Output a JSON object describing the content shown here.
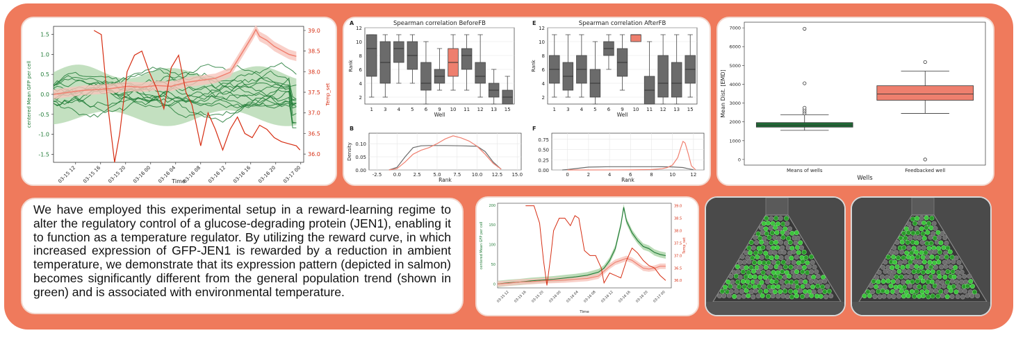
{
  "description_text": "We have employed this experimental setup in a reward-learning regime to alter the regulatory control of a glucose-degrading protein (JEN1), enabling it to function as a temperature regulator. By utilizing the reward curve, in which increased expression of GFP-JEN1 is rewarded by a reduction in ambient temperature, we demonstrate that its expression pattern (depicted in salmon) becomes significantly different from the general population trend (shown in green) and is associated with environmental temperature.",
  "colors": {
    "banner": "#ef7a5c",
    "green": "#1f7a35",
    "green_band": "#a9d3a5",
    "salmon": "#f08070",
    "salmon_band": "#f8c4bb",
    "red": "#d62d12",
    "grey_box": "#6b6b6b"
  },
  "chart_data": [
    {
      "type": "line",
      "id": "timeseries_main",
      "xlabel": "Time",
      "ylabel": "centered Mean GFP per cell",
      "y2label": "Temp_set",
      "xticks": [
        "03-15 12",
        "03-15 16",
        "03-15 20",
        "03-16 00",
        "03-16 04",
        "03-16 08",
        "03-16 12",
        "03-16 16",
        "03-16 20",
        "03-17 00"
      ],
      "yticks": [
        "1.5",
        "1.0",
        "0.5",
        "0.0",
        "-0.5",
        "-1.0",
        "-1.5"
      ],
      "y2ticks": [
        "39.0",
        "38.5",
        "38.0",
        "37.5",
        "37.0",
        "36.5",
        "36.0"
      ],
      "ylim": [
        -1.7,
        1.7
      ],
      "y2lim": [
        35.8,
        39.1
      ],
      "series": [
        {
          "role": "temperature",
          "color": "#d62d12",
          "x": [
            0,
            4,
            5.5,
            6.5,
            7.5,
            8.3,
            9,
            10,
            11,
            12,
            13,
            14,
            15,
            16,
            17,
            18,
            18.8,
            19.3,
            20,
            21,
            22,
            23,
            24,
            25,
            26,
            27,
            28,
            29,
            30,
            31,
            32,
            33,
            33.5
          ],
          "y": [
            null,
            null,
            39.0,
            38.9,
            37.0,
            35.8,
            36.5,
            38.0,
            38.4,
            38.5,
            38.0,
            37.6,
            37.1,
            38.1,
            38.4,
            37.5,
            37.2,
            36.8,
            36.2,
            37.0,
            36.6,
            36.1,
            36.6,
            36.9,
            36.5,
            36.4,
            36.7,
            36.6,
            36.4,
            36.3,
            36.25,
            36.2,
            36.1
          ]
        },
        {
          "role": "feedbacked_well",
          "color": "#f08070",
          "x": [
            0,
            2,
            4,
            6,
            8,
            10,
            12,
            14,
            16,
            18,
            20,
            22,
            24,
            25,
            26,
            27,
            27.5,
            28,
            29,
            30,
            31,
            32,
            33
          ],
          "y": [
            0.0,
            0.05,
            0.1,
            0.12,
            0.15,
            0.2,
            0.18,
            0.22,
            0.2,
            0.3,
            0.35,
            0.4,
            0.55,
            0.85,
            1.15,
            1.45,
            1.62,
            1.45,
            1.35,
            1.2,
            1.1,
            1.0,
            0.95
          ]
        }
      ]
    },
    {
      "type": "box",
      "id": "spearman_before",
      "panel": "A",
      "title": "Spearman correlation BeforeFB",
      "xlabel": "Well",
      "ylabel": "Rank",
      "categories": [
        "1",
        "3",
        "4",
        "5",
        "6",
        "9",
        "10",
        "11",
        "12",
        "13",
        "15"
      ],
      "ylim": [
        1,
        12
      ],
      "yticks": [
        2,
        4,
        6,
        8,
        10,
        12
      ],
      "boxes": [
        {
          "min": 2,
          "q1": 5,
          "median": 9,
          "q3": 11,
          "max": 11
        },
        {
          "min": 2,
          "q1": 4,
          "median": 7,
          "q3": 10,
          "max": 11
        },
        {
          "min": 4,
          "q1": 7,
          "median": 9,
          "q3": 10,
          "max": 11
        },
        {
          "min": 4,
          "q1": 6,
          "median": 8,
          "q3": 10,
          "max": 11
        },
        {
          "min": 1,
          "q1": 3,
          "median": 4,
          "q3": 7,
          "max": 10
        },
        {
          "min": 3,
          "q1": 4,
          "median": 5,
          "q3": 6,
          "max": 9
        },
        {
          "min": 3,
          "q1": 5,
          "median": 7,
          "q3": 9,
          "max": 11,
          "highlight": true
        },
        {
          "min": 3,
          "q1": 6,
          "median": 8,
          "q3": 9,
          "max": 11
        },
        {
          "min": 2,
          "q1": 4,
          "median": 5,
          "q3": 7,
          "max": 11
        },
        {
          "min": 1,
          "q1": 2,
          "median": 3,
          "q3": 4,
          "max": 6
        },
        {
          "min": 1,
          "q1": 1,
          "median": 2,
          "q3": 3,
          "max": 5
        }
      ]
    },
    {
      "type": "box",
      "id": "spearman_after",
      "panel": "E",
      "title": "Spearman correlation AfterFB",
      "xlabel": "Well",
      "ylabel": "Rank",
      "categories": [
        "1",
        "3",
        "4",
        "5",
        "6",
        "9",
        "10",
        "11",
        "12",
        "13",
        "15"
      ],
      "ylim": [
        1,
        12
      ],
      "yticks": [
        2,
        4,
        6,
        8,
        10,
        12
      ],
      "boxes": [
        {
          "min": 2,
          "q1": 4,
          "median": 6,
          "q3": 8,
          "max": 11
        },
        {
          "min": 2,
          "q1": 3,
          "median": 5,
          "q3": 7,
          "max": 11
        },
        {
          "min": 2,
          "q1": 4,
          "median": 6,
          "q3": 8,
          "max": 11
        },
        {
          "min": 1,
          "q1": 2,
          "median": 4,
          "q3": 6,
          "max": 10
        },
        {
          "min": 6,
          "q1": 8,
          "median": 9,
          "q3": 10,
          "max": 11
        },
        {
          "min": 3,
          "q1": 5,
          "median": 7,
          "q3": 9,
          "max": 11
        },
        {
          "min": 10,
          "q1": 10,
          "median": 11,
          "q3": 11,
          "max": 11,
          "highlight": true
        },
        {
          "min": 1,
          "q1": 1,
          "median": 3,
          "q3": 5,
          "max": 10
        },
        {
          "min": 1,
          "q1": 2,
          "median": 4,
          "q3": 8,
          "max": 11
        },
        {
          "min": 1,
          "q1": 2,
          "median": 4,
          "q3": 7,
          "max": 11
        },
        {
          "min": 2,
          "q1": 4,
          "median": 6,
          "q3": 8,
          "max": 11
        }
      ]
    },
    {
      "type": "line",
      "id": "density_before",
      "panel": "B",
      "xlabel": "Rank",
      "ylabel": "Density",
      "xticks": [
        "-2.5",
        "0.0",
        "2.5",
        "5.0",
        "7.5",
        "10.0",
        "12.5",
        "15.0"
      ],
      "yticks": [
        "0.00",
        "0.05",
        "0.10"
      ],
      "xlim": [
        -3.5,
        15.5
      ],
      "ylim": [
        0,
        0.14
      ],
      "series": [
        {
          "color": "#6b6b6b",
          "x": [
            -1,
            0,
            1,
            2,
            3,
            4,
            6,
            8,
            10,
            11,
            12,
            13
          ],
          "y": [
            0,
            0.01,
            0.05,
            0.085,
            0.092,
            0.093,
            0.093,
            0.092,
            0.09,
            0.07,
            0.03,
            0.003
          ]
        },
        {
          "color": "#f08070",
          "x": [
            -1,
            0,
            1,
            2,
            3,
            4,
            5,
            6,
            7,
            8,
            9,
            10,
            11,
            12,
            13
          ],
          "y": [
            0,
            0.005,
            0.03,
            0.06,
            0.075,
            0.085,
            0.1,
            0.118,
            0.13,
            0.122,
            0.11,
            0.09,
            0.06,
            0.025,
            0.003
          ]
        }
      ]
    },
    {
      "type": "line",
      "id": "density_after",
      "panel": "F",
      "xlabel": "Rank",
      "ylabel": "",
      "xticks": [
        "0",
        "2",
        "4",
        "6",
        "8",
        "10",
        "12"
      ],
      "yticks": [
        "0.00",
        "0.25",
        "0.50",
        "0.75"
      ],
      "xlim": [
        -1.5,
        13
      ],
      "ylim": [
        0,
        0.9
      ],
      "series": [
        {
          "color": "#6b6b6b",
          "x": [
            -0.5,
            0,
            1,
            2,
            4,
            6,
            8,
            9,
            10,
            11,
            11.5,
            12
          ],
          "y": [
            0,
            0.01,
            0.04,
            0.07,
            0.08,
            0.08,
            0.08,
            0.078,
            0.075,
            0.06,
            0.03,
            0.005
          ]
        },
        {
          "color": "#f08070",
          "x": [
            0,
            6,
            8,
            9,
            9.5,
            10,
            10.5,
            10.8,
            11,
            11.2,
            11.5,
            11.8,
            12.2
          ],
          "y": [
            0,
            0.002,
            0.01,
            0.03,
            0.06,
            0.12,
            0.3,
            0.55,
            0.7,
            0.66,
            0.4,
            0.1,
            0.005
          ]
        }
      ]
    },
    {
      "type": "box",
      "id": "mean_distance",
      "xlabel": "Wells",
      "ylabel": "Mean Dist. [EMD]",
      "categories": [
        "Means of wells",
        "Feedbacked well"
      ],
      "ylim": [
        -300,
        7300
      ],
      "yticks": [
        0,
        1000,
        2000,
        3000,
        4000,
        5000,
        6000,
        7000
      ],
      "boxes": [
        {
          "min": 1550,
          "q1": 1720,
          "median": 1820,
          "q3": 1960,
          "max": 2380,
          "color": "#1f6b36",
          "outliers": [
            2450,
            2550,
            2650,
            2750,
            4050,
            6950
          ]
        },
        {
          "min": 2450,
          "q1": 3150,
          "median": 3480,
          "q3": 3920,
          "max": 4700,
          "color": "#ee7f6e",
          "outliers": [
            5180,
            0
          ]
        }
      ]
    },
    {
      "type": "line",
      "id": "timeseries_small",
      "xlabel": "Time",
      "ylabel": "centered Mean GFP per cell",
      "y2label": "Temp_set",
      "xticks": [
        "03-15 12",
        "03-15 16",
        "03-15 20",
        "03-16 00",
        "03-16 04",
        "03-16 08",
        "03-16 12",
        "03-16 16",
        "03-16 20",
        "03-17 00"
      ],
      "yticks": [
        "200",
        "150",
        "100",
        "50",
        "0"
      ],
      "y2ticks": [
        "39.0",
        "38.5",
        "38.0",
        "37.5",
        "37.0",
        "36.5",
        "36.0"
      ],
      "ylim": [
        -10,
        205
      ],
      "y2lim": [
        35.7,
        39.1
      ],
      "series": [
        {
          "role": "temperature",
          "color": "#d62d12",
          "x": [
            5,
            6.5,
            7.5,
            8.2,
            8.8,
            9.5,
            10,
            11,
            12,
            13,
            13.8,
            14.5,
            15.5,
            16.5,
            17.5,
            18.5,
            19,
            20,
            21,
            22,
            23,
            24,
            25,
            26,
            27,
            28,
            29,
            30
          ],
          "y": [
            39.0,
            39.0,
            38.3,
            36.8,
            35.8,
            37.0,
            38.0,
            38.5,
            38.5,
            38.2,
            38.6,
            38.5,
            37.2,
            37.0,
            37.0,
            36.5,
            35.9,
            36.3,
            36.2,
            36.1,
            36.8,
            37.3,
            37.1,
            36.8,
            36.6,
            36.5,
            36.2,
            36.0
          ]
        },
        {
          "role": "population",
          "color": "#1f7a35",
          "x": [
            0,
            2,
            4,
            6,
            8,
            10,
            12,
            14,
            16,
            18,
            19,
            20,
            21,
            22,
            22.5,
            23,
            24,
            25,
            26,
            27,
            28,
            29,
            30
          ],
          "y": [
            0,
            3,
            5,
            8,
            10,
            12,
            15,
            18,
            22,
            30,
            40,
            60,
            90,
            150,
            195,
            160,
            130,
            110,
            95,
            90,
            80,
            75,
            72
          ]
        },
        {
          "role": "feedbacked_well",
          "color": "#f08070",
          "x": [
            0,
            2,
            4,
            6,
            8,
            10,
            12,
            14,
            16,
            18,
            20,
            21,
            22,
            23,
            24,
            25,
            26,
            27,
            28,
            29,
            30
          ],
          "y": [
            0,
            2,
            5,
            6,
            8,
            9,
            10,
            12,
            14,
            20,
            45,
            55,
            60,
            65,
            60,
            50,
            40,
            38,
            40,
            45,
            45
          ]
        }
      ]
    }
  ]
}
